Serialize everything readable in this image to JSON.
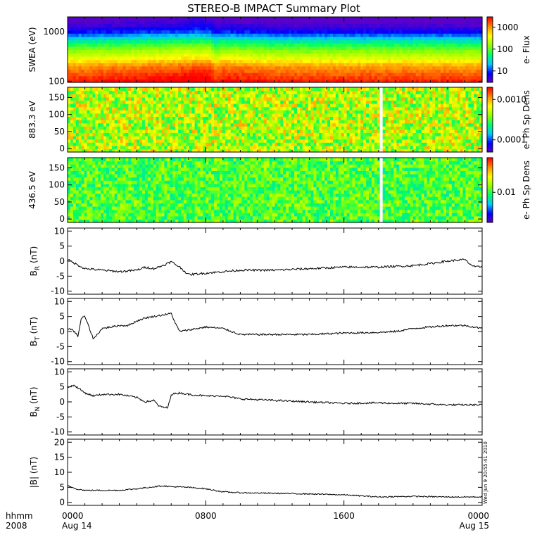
{
  "title": "STEREO-B IMPACT Summary Plot",
  "stamp": "Wed Jun  9 20:55:41 2010",
  "time_axis": {
    "corner_label_1": "hhmm",
    "corner_label_2": "2008",
    "ticks": [
      {
        "hours": 0,
        "label": "0000",
        "sublabel": "Aug 14"
      },
      {
        "hours": 8,
        "label": "0800",
        "sublabel": ""
      },
      {
        "hours": 16,
        "label": "1600",
        "sublabel": ""
      },
      {
        "hours": 24,
        "label": "0000",
        "sublabel": "Aug 15"
      }
    ],
    "minor_step_hours": 1
  },
  "colors": {
    "spectrogram_scale": [
      "#5a00c8",
      "#0000ff",
      "#00c8ff",
      "#00ff64",
      "#96ff00",
      "#ffff00",
      "#ff8c00",
      "#ff0000"
    ],
    "line": "#000000",
    "gap": "#ffffff"
  },
  "chart_data": [
    {
      "type": "heatmap",
      "ylabel": "SWEA (eV)",
      "ylim": [
        95,
        2000
      ],
      "yscale": "log",
      "yticks": [
        {
          "v": 100,
          "label": "100"
        },
        {
          "v": 1000,
          "label": "1000"
        }
      ],
      "colorbar": {
        "label": "e- Flux",
        "scale": "log",
        "range": [
          3,
          3000
        ],
        "ticks": [
          {
            "v": 10,
            "label": "10"
          },
          {
            "v": 100,
            "label": "100"
          },
          {
            "v": 1000,
            "label": "1000"
          }
        ]
      },
      "profile": [
        [
          100,
          2500
        ],
        [
          200,
          1000
        ],
        [
          300,
          300
        ],
        [
          500,
          90
        ],
        [
          700,
          30
        ],
        [
          1000,
          8
        ],
        [
          1300,
          4
        ],
        [
          2000,
          2
        ]
      ],
      "time_factor": [
        [
          0,
          1.0
        ],
        [
          5.5,
          1.35
        ],
        [
          7.5,
          1.7
        ],
        [
          8.3,
          1.6
        ],
        [
          8.6,
          0.9
        ],
        [
          9.0,
          1.3
        ],
        [
          12,
          1.0
        ],
        [
          24,
          0.95
        ]
      ],
      "noise": 0.18,
      "gaps": []
    },
    {
      "type": "heatmap",
      "ylabel": "883.3 eV",
      "ylim": [
        -10,
        180
      ],
      "yscale": "linear",
      "yticks": [
        {
          "v": 0,
          "label": "0"
        },
        {
          "v": 50,
          "label": "50"
        },
        {
          "v": 100,
          "label": "100"
        },
        {
          "v": 150,
          "label": "150"
        }
      ],
      "colorbar": {
        "label": "e- Ph Sp Dens",
        "scale": "log",
        "range": [
          5e-05,
          0.002
        ],
        "ticks": [
          {
            "v": 0.0001,
            "label": "0.0001"
          },
          {
            "v": 0.001,
            "label": "0.0010"
          }
        ]
      },
      "profile": [
        [
          0,
          0.0005
        ],
        [
          180,
          0.0005
        ]
      ],
      "time_factor": [
        [
          0,
          1.0
        ],
        [
          24,
          1.0
        ]
      ],
      "noise": 0.65,
      "gaps": [
        [
          18.05,
          18.25
        ]
      ]
    },
    {
      "type": "heatmap",
      "ylabel": "436.5 eV",
      "ylim": [
        -10,
        180
      ],
      "yscale": "linear",
      "yticks": [
        {
          "v": 0,
          "label": "0"
        },
        {
          "v": 50,
          "label": "50"
        },
        {
          "v": 100,
          "label": "100"
        },
        {
          "v": 150,
          "label": "150"
        }
      ],
      "colorbar": {
        "label": "e- Ph Sp Dens",
        "scale": "log",
        "range": [
          0.003,
          0.04
        ],
        "ticks": [
          {
            "v": 0.01,
            "label": "0.01"
          }
        ]
      },
      "profile": [
        [
          0,
          0.011
        ],
        [
          180,
          0.011
        ]
      ],
      "time_factor": [
        [
          0,
          1.0
        ],
        [
          24,
          1.0
        ]
      ],
      "noise": 0.3,
      "gaps": [
        [
          18.05,
          18.25
        ]
      ]
    },
    {
      "type": "line",
      "ylabel_main": "B",
      "ylabel_sub": "R",
      "ylabel_unit": " (nT)",
      "ylim": [
        -11,
        11
      ],
      "yticks": [
        -10,
        -5,
        0,
        5,
        10
      ],
      "x": [
        0,
        0.5,
        1,
        2,
        3,
        4,
        4.5,
        5,
        5.5,
        6,
        6.5,
        7,
        8,
        9,
        10,
        12,
        14,
        16,
        18,
        20,
        21,
        22,
        22.5,
        23,
        23.3,
        23.6,
        24
      ],
      "y": [
        0.5,
        -1,
        -2.5,
        -3,
        -3.5,
        -3,
        -2,
        -2.5,
        -1.5,
        -0.2,
        -2,
        -4.5,
        -4,
        -3.5,
        -3,
        -3,
        -2.5,
        -2,
        -2,
        -1.5,
        -0.8,
        0,
        0.3,
        0.5,
        -1,
        -2,
        -1.8
      ],
      "noise": 0.7
    },
    {
      "type": "line",
      "ylabel_main": "B",
      "ylabel_sub": "T",
      "ylabel_unit": " (nT)",
      "ylim": [
        -11,
        11
      ],
      "yticks": [
        -10,
        -5,
        0,
        5,
        10
      ],
      "x": [
        0,
        0.3,
        0.6,
        0.8,
        1,
        1.5,
        2,
        2.5,
        3,
        3.5,
        4,
        4.5,
        5,
        5.5,
        6,
        6.3,
        6.5,
        7,
        8,
        9,
        10,
        11,
        12,
        14,
        16,
        18,
        19,
        20,
        22,
        23,
        24
      ],
      "y": [
        1,
        0.5,
        -1.5,
        4.5,
        5,
        -2.5,
        1,
        1.5,
        2,
        2,
        3.5,
        4.5,
        5,
        5.5,
        6,
        2,
        0,
        0.5,
        1.5,
        1,
        -1,
        -1,
        -1,
        -1,
        -0.5,
        -0.3,
        0,
        1,
        2,
        2,
        1
      ],
      "noise": 0.6
    },
    {
      "type": "line",
      "ylabel_main": "B",
      "ylabel_sub": "N",
      "ylabel_unit": " (nT)",
      "ylim": [
        -11,
        11
      ],
      "yticks": [
        -10,
        -5,
        0,
        5,
        10
      ],
      "x": [
        0,
        0.4,
        1,
        1.5,
        2,
        3,
        3.5,
        4,
        4.5,
        5,
        5.3,
        5.8,
        6,
        6.5,
        7,
        8,
        9,
        10,
        12,
        14,
        16,
        18,
        19,
        20,
        22,
        24
      ],
      "y": [
        5,
        5.5,
        3,
        2,
        2.5,
        2.5,
        2,
        1.5,
        0,
        0.5,
        -1.5,
        -2,
        2.5,
        3,
        2.5,
        2,
        2,
        1,
        0.5,
        0,
        -0.5,
        -0.3,
        -0.5,
        -0.5,
        -1,
        -1
      ],
      "noise": 0.6
    },
    {
      "type": "line",
      "ylabel_main": "|B|",
      "ylabel_sub": "",
      "ylabel_unit": " (nT)",
      "ylim": [
        -1,
        21
      ],
      "yticks": [
        0,
        5,
        10,
        15,
        20
      ],
      "x": [
        0,
        0.5,
        1,
        2,
        3,
        4,
        5,
        5.5,
        6,
        7,
        8,
        9,
        10,
        12,
        14,
        16,
        18,
        20,
        22,
        24
      ],
      "y": [
        5.5,
        4.5,
        4,
        4,
        4,
        4.5,
        5.2,
        5.5,
        5.2,
        5,
        4.5,
        3.5,
        3.2,
        3,
        2.8,
        2.5,
        1.8,
        2,
        1.8,
        1.8
      ],
      "noise": 0.4
    }
  ]
}
